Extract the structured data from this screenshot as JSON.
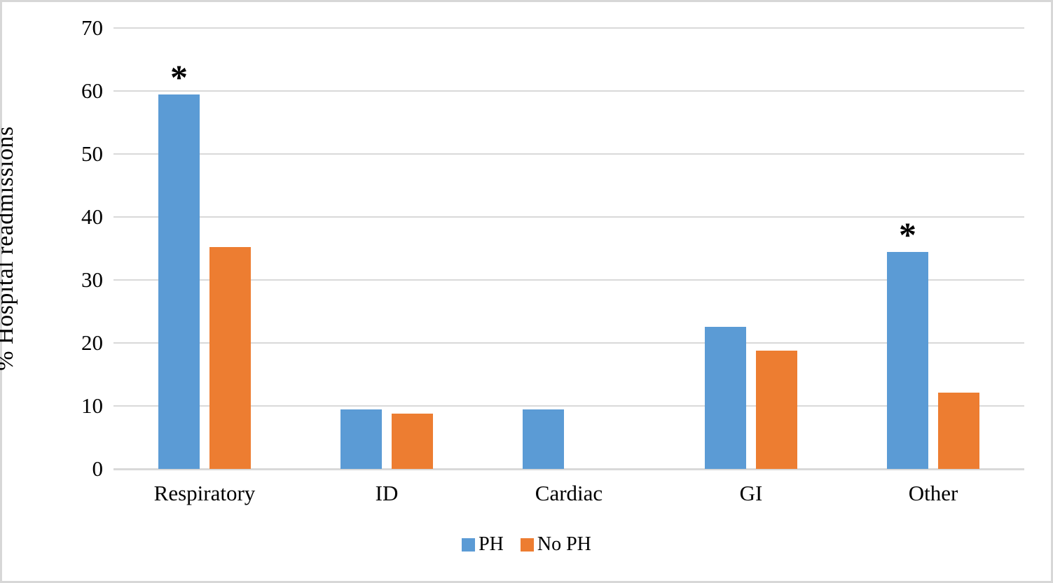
{
  "figure": {
    "background_color": "#FFFFFF",
    "border_color": "#D7D7D7",
    "gridline_color": "#D9D9D9",
    "axis_line_color": "#D9D9D9",
    "text_color": "#000000"
  },
  "chart_data": {
    "type": "bar",
    "title": "",
    "xlabel": "",
    "ylabel": "% Hospital readmissions",
    "ylim": [
      0,
      70
    ],
    "ytick_interval": 10,
    "ytick_labels": [
      "0",
      "10",
      "20",
      "30",
      "40",
      "50",
      "60",
      "70"
    ],
    "grid": "horizontal",
    "legend_position": "bottom",
    "categories": [
      "Respiratory",
      "ID",
      "Cardiac",
      "GI",
      "Other"
    ],
    "series": [
      {
        "name": "PH",
        "color": "#5B9BD5",
        "values": [
          59.5,
          9.5,
          9.5,
          22.6,
          34.5
        ]
      },
      {
        "name": "No PH",
        "color": "#ED7D31",
        "values": [
          35.2,
          8.8,
          0,
          18.8,
          12.1
        ]
      }
    ],
    "significance": {
      "symbol": "*",
      "on_series": "PH",
      "categories": [
        "Respiratory",
        "Other"
      ]
    },
    "legend": [
      {
        "label": "PH",
        "color": "#5B9BD5"
      },
      {
        "label": "No PH",
        "color": "#ED7D31"
      }
    ]
  }
}
